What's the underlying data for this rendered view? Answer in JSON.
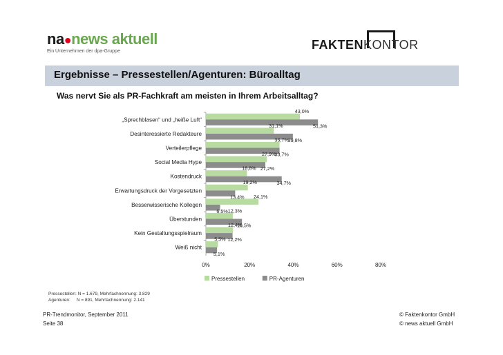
{
  "header": {
    "logo_left_main": "na",
    "logo_left_word1": "news",
    "logo_left_word2": "aktuell",
    "logo_left_sub": "Ein Unternehmen der dpa-Gruppe",
    "logo_right_bold": "FAKTEN",
    "logo_right_light": "KONTOR"
  },
  "title": "Ergebnisse – Pressestellen/Agenturen: Büroalltag",
  "question": "Was nervt Sie als PR-Fachkraft am meisten in Ihrem Arbeitsalltag?",
  "chart_data": {
    "type": "bar",
    "orientation": "horizontal",
    "categories": [
      "„Sprechblasen“ und „heiße Luft“",
      "Desinteressierte Redakteure",
      "Verteilerpflege",
      "Social Media Hype",
      "Kostendruck",
      "Erwartungsdruck der Vorgesetzten",
      "Besserwisserische Kollegen",
      "Überstunden",
      "Kein Gestaltungsspielraum",
      "Weiß nicht"
    ],
    "series": [
      {
        "name": "Pressestellen",
        "values": [
          43.0,
          31.1,
          33.7,
          27.9,
          18.8,
          19.2,
          24.1,
          12.3,
          12.4,
          5.5
        ],
        "labels": [
          "43,0%",
          "31,1%",
          "33,7%",
          "27,9%",
          "18,8%",
          "19,2%",
          "24,1%",
          "12,3%",
          "12,4%",
          "5,5%"
        ],
        "color": "#b7dba1"
      },
      {
        "name": "PR-Agenturen",
        "values": [
          51.3,
          39.8,
          33.7,
          27.2,
          34.7,
          13.4,
          6.5,
          16.5,
          12.2,
          5.1
        ],
        "labels": [
          "51,3%",
          "39,8%",
          "33,7%",
          "27,2%",
          "34,7%",
          "13,4%",
          "6,5%",
          "16,5%",
          "12,2%",
          "5,1%"
        ],
        "color": "#8c8c8c"
      }
    ],
    "xlim": [
      0,
      80
    ],
    "xticks": [
      "0%",
      "20%",
      "40%",
      "60%",
      "80%"
    ],
    "legend_position": "bottom"
  },
  "footnote": {
    "line1": "Pressestellen: N = 1.679, Mehrfachnennung: 3.829",
    "line2": "Agenturen:     N = 891, Mehrfachnennung: 2.141"
  },
  "footer": {
    "left1": "PR-Trendmonitor, September 2011",
    "left2": "Seite 38",
    "right1": "© Faktenkontor GmbH",
    "right2": "© news aktuell GmbH"
  }
}
